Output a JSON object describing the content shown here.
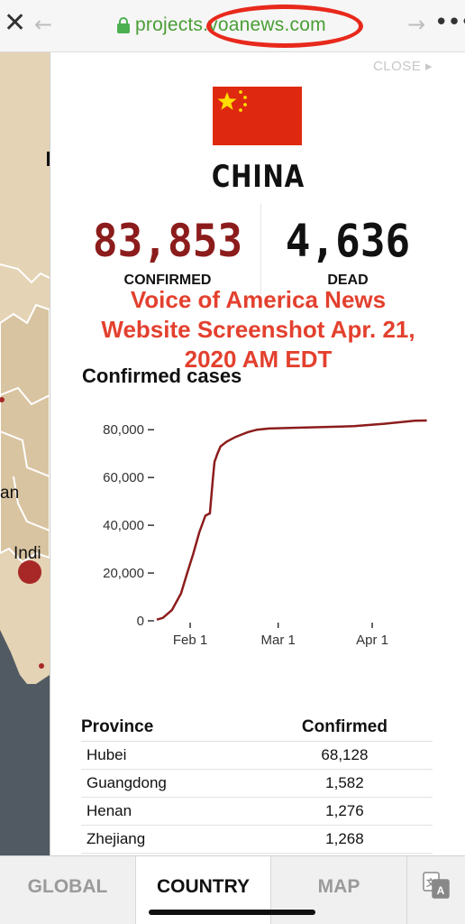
{
  "browser": {
    "url_prefix": "projects.",
    "url_domain": "voanews.com"
  },
  "map": {
    "label_an": "an",
    "label_india": "Indi"
  },
  "panel": {
    "close_label": "CLOSE ▸",
    "country": "CHINA",
    "confirmed_value": "83,853",
    "confirmed_label": "CONFIRMED",
    "dead_value": "4,636",
    "dead_label": "DEAD",
    "flag_color": "#de2910",
    "star_color": "#ffde00"
  },
  "watermark": {
    "line1": "Voice of America News",
    "line2": "Website Screenshot Apr. 21,",
    "line3": "2020 AM EDT"
  },
  "chart_data": {
    "type": "line",
    "title": "Confirmed cases",
    "ytick_labels": [
      "0",
      "20,000",
      "40,000",
      "60,000",
      "80,000"
    ],
    "yticks": [
      0,
      20000,
      40000,
      60000,
      80000
    ],
    "xtick_labels": [
      "Feb 1",
      "Mar 1",
      "Apr 1"
    ],
    "xticks": [
      11,
      40,
      71
    ],
    "ylim": [
      0,
      85000
    ],
    "xlim": [
      0,
      90
    ],
    "line_color": "#8c1c1c",
    "series": [
      {
        "x": [
          0,
          2,
          5,
          8,
          10,
          12,
          14,
          16,
          17.5,
          18.5,
          19,
          20,
          21,
          23,
          26,
          28,
          30,
          33,
          37,
          45,
          55,
          65,
          75,
          85,
          89
        ],
        "y": [
          500,
          1200,
          4500,
          11500,
          20000,
          28000,
          37000,
          44000,
          45000,
          59800,
          66500,
          70000,
          73000,
          75000,
          77000,
          78000,
          79000,
          80000,
          80500,
          80800,
          81100,
          81500,
          82500,
          83800,
          83853
        ]
      }
    ]
  },
  "table": {
    "col_province": "Province",
    "col_confirmed": "Confirmed",
    "rows": [
      {
        "name": "Hubei",
        "value": "68,128"
      },
      {
        "name": "Guangdong",
        "value": "1,582"
      },
      {
        "name": "Henan",
        "value": "1,276"
      },
      {
        "name": "Zhejiang",
        "value": "1,268"
      }
    ]
  },
  "tabs": {
    "global": "GLOBAL",
    "country": "COUNTRY",
    "map": "MAP"
  }
}
